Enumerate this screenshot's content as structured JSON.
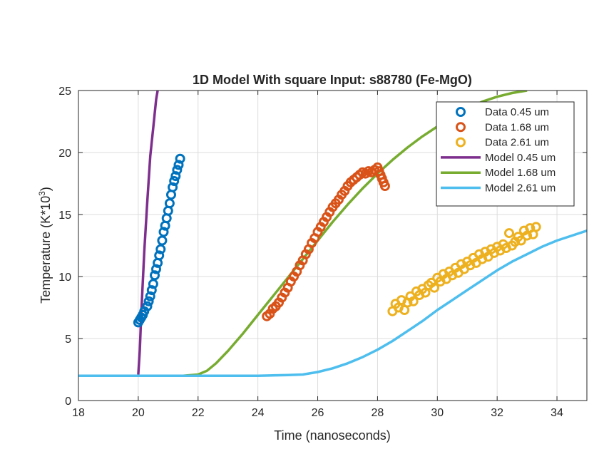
{
  "chart_data": {
    "type": "line",
    "title": "1D Model With square Input: s88780 (Fe-MgO)",
    "xlabel": "Time (nanoseconds)",
    "ylabel_main": "Temperature (K*10",
    "ylabel_sup": "3",
    "ylabel_close": ")",
    "xlim": [
      18,
      35
    ],
    "ylim": [
      0,
      25
    ],
    "xticks": [
      18,
      20,
      22,
      24,
      26,
      28,
      30,
      32,
      34
    ],
    "yticks": [
      0,
      5,
      10,
      15,
      20,
      25
    ],
    "grid": true,
    "legend_position": "top-right",
    "series": [
      {
        "name": "Data 0.45 um",
        "kind": "markers",
        "color": "#0072BD",
        "x": [
          20.0,
          20.05,
          20.1,
          20.15,
          20.2,
          20.3,
          20.35,
          20.4,
          20.45,
          20.5,
          20.55,
          20.6,
          20.65,
          20.7,
          20.75,
          20.8,
          20.85,
          20.9,
          20.95,
          21.0,
          21.05,
          21.1,
          21.15,
          21.2,
          21.25,
          21.3,
          21.35,
          21.4
        ],
        "y": [
          6.3,
          6.5,
          6.7,
          6.9,
          7.2,
          7.6,
          8.0,
          8.4,
          8.9,
          9.4,
          10.1,
          10.6,
          11.1,
          11.7,
          12.2,
          12.9,
          13.6,
          14.1,
          14.7,
          15.3,
          15.9,
          16.6,
          17.2,
          17.7,
          18.1,
          18.6,
          19.0,
          19.5
        ]
      },
      {
        "name": "Data 1.68 um",
        "kind": "markers",
        "color": "#D95319",
        "x": [
          24.3,
          24.4,
          24.5,
          24.6,
          24.7,
          24.8,
          24.9,
          25.0,
          25.1,
          25.2,
          25.3,
          25.4,
          25.5,
          25.6,
          25.7,
          25.8,
          25.9,
          26.0,
          26.1,
          26.2,
          26.3,
          26.4,
          26.5,
          26.6,
          26.7,
          26.8,
          26.9,
          27.0,
          27.1,
          27.2,
          27.3,
          27.4,
          27.5,
          27.6,
          27.7,
          27.8,
          27.9,
          28.0,
          28.05,
          28.1,
          28.15,
          28.2,
          28.25
        ],
        "y": [
          6.8,
          7.0,
          7.4,
          7.6,
          7.9,
          8.3,
          8.7,
          9.1,
          9.6,
          10.0,
          10.4,
          10.9,
          11.3,
          11.8,
          12.2,
          12.7,
          13.1,
          13.6,
          14.0,
          14.4,
          14.8,
          15.2,
          15.6,
          15.9,
          16.2,
          16.6,
          16.9,
          17.3,
          17.6,
          17.8,
          18.0,
          18.2,
          18.4,
          18.3,
          18.5,
          18.4,
          18.6,
          18.8,
          18.5,
          18.2,
          17.9,
          17.6,
          17.3
        ]
      },
      {
        "name": "Data 2.61 um",
        "kind": "markers",
        "color": "#EDB120",
        "x": [
          28.5,
          28.6,
          28.7,
          28.8,
          28.9,
          29.0,
          29.1,
          29.2,
          29.3,
          29.4,
          29.5,
          29.6,
          29.7,
          29.8,
          29.9,
          30.0,
          30.1,
          30.2,
          30.3,
          30.4,
          30.5,
          30.6,
          30.7,
          30.8,
          30.9,
          31.0,
          31.1,
          31.2,
          31.3,
          31.4,
          31.5,
          31.6,
          31.7,
          31.8,
          31.9,
          32.0,
          32.1,
          32.2,
          32.3,
          32.4,
          32.5,
          32.6,
          32.7,
          32.8,
          32.9,
          33.0,
          33.1,
          33.2,
          33.3
        ],
        "y": [
          7.2,
          7.8,
          7.5,
          8.1,
          7.3,
          7.9,
          8.4,
          8.0,
          8.8,
          8.5,
          9.0,
          8.7,
          9.3,
          9.5,
          9.1,
          9.9,
          9.6,
          10.2,
          9.8,
          10.4,
          10.1,
          10.7,
          10.3,
          11.0,
          10.6,
          11.2,
          10.9,
          11.5,
          11.1,
          11.8,
          11.4,
          12.0,
          11.6,
          12.2,
          11.9,
          12.4,
          12.1,
          12.6,
          12.3,
          13.5,
          12.5,
          12.8,
          13.2,
          12.9,
          13.7,
          13.3,
          13.9,
          13.4,
          14.0
        ]
      },
      {
        "name": "Model 0.45 um",
        "kind": "line",
        "color": "#7E2F8E",
        "x": [
          20.0,
          20.05,
          20.1,
          20.2,
          20.3,
          20.4,
          20.5,
          20.6,
          20.65,
          20.7
        ],
        "y": [
          2.1,
          4.0,
          7.0,
          12.0,
          16.0,
          19.7,
          22.0,
          24.3,
          25.0,
          25.6
        ]
      },
      {
        "name": "Model 1.68 um",
        "kind": "line",
        "color": "#77AC30",
        "x": [
          18,
          21.5,
          22.0,
          22.3,
          22.6,
          23.0,
          23.5,
          24.0,
          24.5,
          25.0,
          25.5,
          26.0,
          26.5,
          27.0,
          27.5,
          28.0,
          28.5,
          29.0,
          29.5,
          30.0,
          30.5,
          31.0,
          31.5,
          32.0,
          32.5,
          33.0
        ],
        "y": [
          2.0,
          2.0,
          2.1,
          2.4,
          3.0,
          4.0,
          5.4,
          6.9,
          8.4,
          9.9,
          11.4,
          12.9,
          14.4,
          15.8,
          17.1,
          18.3,
          19.4,
          20.4,
          21.3,
          22.1,
          22.9,
          23.5,
          24.1,
          24.5,
          24.8,
          25.0
        ]
      },
      {
        "name": "Model 2.61 um",
        "kind": "line",
        "color": "#4DBEEE",
        "x": [
          18,
          24.0,
          25.0,
          25.5,
          26.0,
          26.5,
          27.0,
          27.5,
          28.0,
          28.5,
          29.0,
          29.5,
          30.0,
          30.5,
          31.0,
          31.5,
          32.0,
          32.5,
          33.0,
          33.5,
          34.0,
          34.5,
          35.0
        ],
        "y": [
          2.0,
          2.0,
          2.05,
          2.1,
          2.3,
          2.6,
          3.0,
          3.5,
          4.1,
          4.8,
          5.6,
          6.4,
          7.3,
          8.1,
          8.9,
          9.7,
          10.5,
          11.2,
          11.8,
          12.4,
          12.9,
          13.3,
          13.7
        ]
      }
    ]
  }
}
